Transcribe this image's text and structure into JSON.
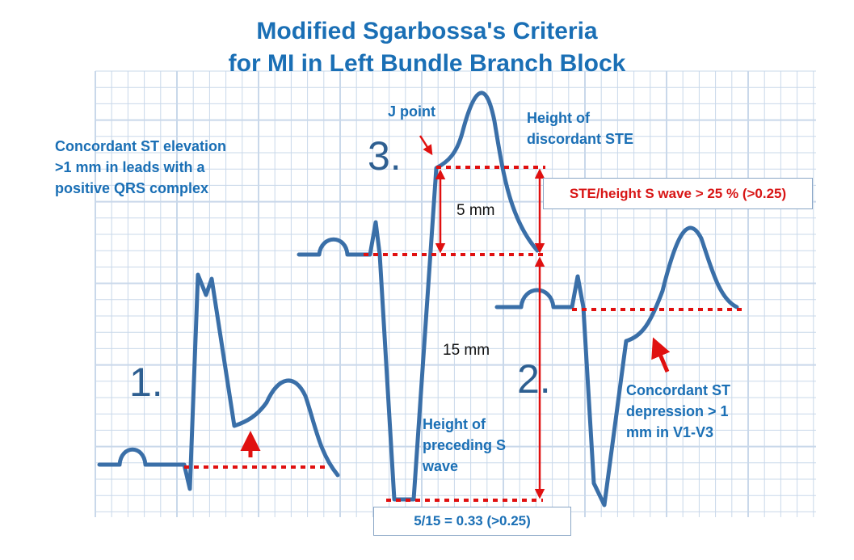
{
  "title": {
    "line1": "Modified Sgarbossa's Criteria",
    "line2": "for MI in Left Bundle Branch Block"
  },
  "labels": {
    "concordant_ste": [
      "Concordant ST elevation",
      ">1 mm in leads with a",
      "positive QRS complex"
    ],
    "j_point": "J point",
    "height_discordant": [
      "Height of",
      "discordant STE"
    ],
    "height_s_wave": [
      "Height of",
      "preceding S",
      "wave"
    ],
    "concordant_std": [
      "Concordant ST",
      "depression > 1",
      "mm in V1-V3"
    ],
    "five_mm": "5 mm",
    "fifteen_mm": "15 mm",
    "num1": "1.",
    "num2": "2.",
    "num3": "3."
  },
  "boxes": {
    "ratio_rule": "STE/height S wave > 25 % (>0.25)",
    "ratio_calc": "5/15 =  0.33 (>0.25)"
  },
  "colors": {
    "text": "#1a6fb5",
    "trace": "#3a6fa8",
    "marker": "#e01010",
    "grid": "#c9d8ea"
  }
}
